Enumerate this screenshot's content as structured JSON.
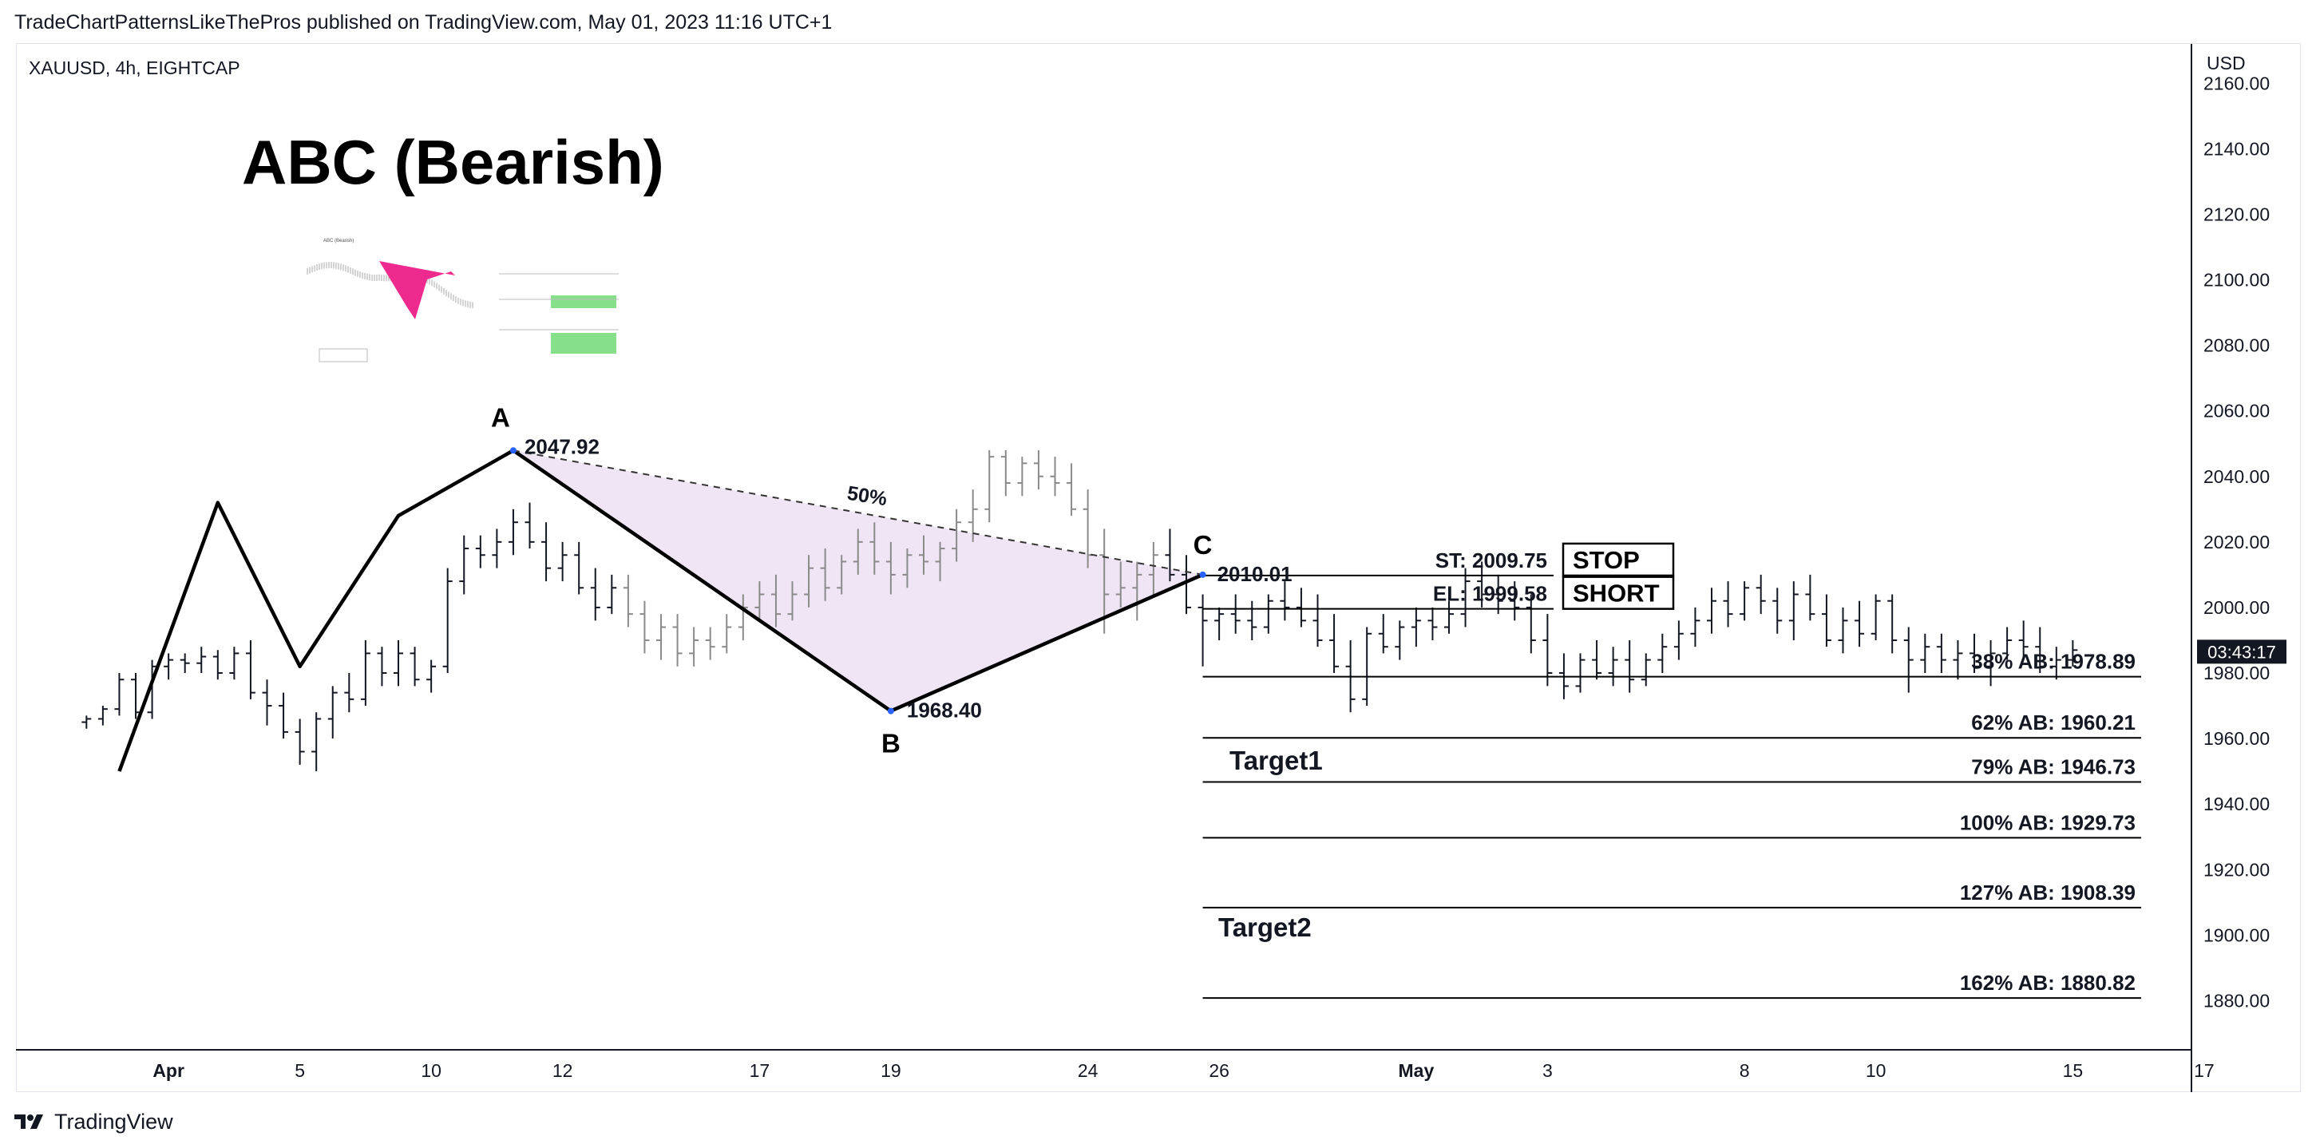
{
  "header": {
    "published_line": "TradeChartPatternsLikeThePros published on TradingView.com, May 01, 2023 11:16 UTC+1",
    "symbol_line": "XAUUSD, 4h, EIGHTCAP"
  },
  "footer": {
    "brand": "TradingView",
    "logo_icon": "tradingview-logo-icon"
  },
  "chart_data": {
    "type": "candlestick",
    "title": "ABC (Bearish)",
    "currency": "USD",
    "ylim": [
      1865,
      2172
    ],
    "y_ticks": [
      {
        "value": 2160,
        "label": "2160.00"
      },
      {
        "value": 2140,
        "label": "2140.00"
      },
      {
        "value": 2120,
        "label": "2120.00"
      },
      {
        "value": 2100,
        "label": "2100.00"
      },
      {
        "value": 2080,
        "label": "2080.00"
      },
      {
        "value": 2060,
        "label": "2060.00"
      },
      {
        "value": 2040,
        "label": "2040.00"
      },
      {
        "value": 2020,
        "label": "2020.00"
      },
      {
        "value": 2000,
        "label": "2000.00"
      },
      {
        "value": 1980,
        "label": "1980.00"
      },
      {
        "value": 1960,
        "label": "1960.00"
      },
      {
        "value": 1940,
        "label": "1940.00"
      },
      {
        "value": 1920,
        "label": "1920.00"
      },
      {
        "value": 1900,
        "label": "1900.00"
      },
      {
        "value": 1880,
        "label": "1880.00"
      }
    ],
    "x_axis_unit": "days since Mar 31, 2023",
    "xlim": [
      -1.5,
      48
    ],
    "x_ticks": [
      {
        "day": 1,
        "label": "Apr",
        "bold": true
      },
      {
        "day": 5,
        "label": "5"
      },
      {
        "day": 9,
        "label": "10"
      },
      {
        "day": 13,
        "label": "12"
      },
      {
        "day": 19,
        "label": "17"
      },
      {
        "day": 23,
        "label": "19"
      },
      {
        "day": 29,
        "label": "24"
      },
      {
        "day": 33,
        "label": "26"
      },
      {
        "day": 39,
        "label": "May",
        "bold": true
      },
      {
        "day": 43,
        "label": "3"
      },
      {
        "day": 49,
        "label": "8"
      },
      {
        "day": 53,
        "label": "10"
      },
      {
        "day": 59,
        "label": "15"
      },
      {
        "day": 63,
        "label": "17"
      }
    ],
    "price_badge": {
      "price": 1986.5,
      "label": "03:43:17"
    },
    "candles": [
      [
        -1.5,
        1965,
        1967,
        1963,
        1966
      ],
      [
        -1.0,
        1966,
        1970,
        1964,
        1969
      ],
      [
        -0.5,
        1969,
        1980,
        1967,
        1978
      ],
      [
        0.0,
        1978,
        1980,
        1966,
        1968
      ],
      [
        0.5,
        1968,
        1984,
        1966,
        1982
      ],
      [
        1.0,
        1982,
        1986,
        1978,
        1984
      ],
      [
        1.5,
        1984,
        1986,
        1980,
        1983
      ],
      [
        2.0,
        1983,
        1988,
        1980,
        1985
      ],
      [
        2.5,
        1985,
        1987,
        1978,
        1980
      ],
      [
        3.0,
        1980,
        1988,
        1978,
        1986
      ],
      [
        3.5,
        1986,
        1990,
        1972,
        1974
      ],
      [
        4.0,
        1974,
        1978,
        1964,
        1970
      ],
      [
        4.5,
        1970,
        1974,
        1960,
        1962
      ],
      [
        5.0,
        1962,
        1966,
        1952,
        1956
      ],
      [
        5.5,
        1956,
        1968,
        1950,
        1966
      ],
      [
        6.0,
        1966,
        1976,
        1960,
        1974
      ],
      [
        6.5,
        1974,
        1980,
        1968,
        1972
      ],
      [
        7.0,
        1972,
        1990,
        1970,
        1986
      ],
      [
        7.5,
        1986,
        1988,
        1976,
        1980
      ],
      [
        8.0,
        1980,
        1990,
        1976,
        1986
      ],
      [
        8.5,
        1986,
        1988,
        1976,
        1978
      ],
      [
        9.0,
        1978,
        1984,
        1974,
        1982
      ],
      [
        9.5,
        1982,
        2012,
        1980,
        2008
      ],
      [
        10.0,
        2008,
        2022,
        2004,
        2018
      ],
      [
        10.5,
        2018,
        2022,
        2012,
        2016
      ],
      [
        11.0,
        2016,
        2024,
        2012,
        2020
      ],
      [
        11.5,
        2020,
        2030,
        2016,
        2026
      ],
      [
        12.0,
        2026,
        2032,
        2018,
        2020
      ],
      [
        12.5,
        2020,
        2026,
        2008,
        2012
      ],
      [
        13.0,
        2012,
        2020,
        2008,
        2016
      ],
      [
        13.5,
        2016,
        2020,
        2004,
        2006
      ],
      [
        14.0,
        2006,
        2012,
        1996,
        2000
      ],
      [
        14.5,
        2000,
        2010,
        1998,
        2006
      ],
      [
        15.0,
        2006,
        2010,
        1994,
        1998
      ],
      [
        15.5,
        1998,
        2002,
        1986,
        1990
      ],
      [
        16.0,
        1990,
        1998,
        1984,
        1994
      ],
      [
        16.5,
        1994,
        1998,
        1982,
        1986
      ],
      [
        17.0,
        1986,
        1994,
        1982,
        1990
      ],
      [
        17.5,
        1990,
        1994,
        1984,
        1988
      ],
      [
        18.0,
        1988,
        1998,
        1986,
        1994
      ],
      [
        18.5,
        1994,
        2004,
        1990,
        2000
      ],
      [
        19.0,
        2000,
        2008,
        1996,
        2004
      ],
      [
        19.5,
        2004,
        2010,
        1994,
        1998
      ],
      [
        20.0,
        1998,
        2008,
        1996,
        2004
      ],
      [
        20.5,
        2004,
        2016,
        2000,
        2012
      ],
      [
        21.0,
        2012,
        2018,
        2002,
        2006
      ],
      [
        21.5,
        2006,
        2016,
        2004,
        2014
      ],
      [
        22.0,
        2014,
        2024,
        2010,
        2020
      ],
      [
        22.5,
        2020,
        2026,
        2010,
        2014
      ],
      [
        23.0,
        2014,
        2020,
        2004,
        2010
      ],
      [
        23.5,
        2010,
        2018,
        2006,
        2016
      ],
      [
        24.0,
        2016,
        2022,
        2010,
        2014
      ],
      [
        24.5,
        2014,
        2020,
        2008,
        2018
      ],
      [
        25.0,
        2018,
        2030,
        2014,
        2026
      ],
      [
        25.5,
        2026,
        2036,
        2020,
        2030
      ],
      [
        26.0,
        2030,
        2048,
        2026,
        2046
      ],
      [
        26.5,
        2046,
        2048,
        2034,
        2038
      ],
      [
        27.0,
        2038,
        2046,
        2034,
        2044
      ],
      [
        27.5,
        2044,
        2048,
        2036,
        2040
      ],
      [
        28.0,
        2040,
        2046,
        2034,
        2038
      ],
      [
        28.5,
        2038,
        2044,
        2028,
        2030
      ],
      [
        29.0,
        2030,
        2036,
        2012,
        2016
      ],
      [
        29.5,
        2016,
        2024,
        1992,
        2004
      ],
      [
        30.0,
        2004,
        2014,
        2000,
        2006
      ],
      [
        30.5,
        2006,
        2014,
        1996,
        2010
      ],
      [
        31.0,
        2010,
        2020,
        2004,
        2016
      ],
      [
        31.5,
        2016,
        2024,
        2008,
        2010
      ],
      [
        32.0,
        2010,
        2016,
        1998,
        2000
      ],
      [
        32.5,
        2000,
        2004,
        1982,
        1996
      ],
      [
        33.0,
        1996,
        2000,
        1990,
        1998
      ],
      [
        33.5,
        1998,
        2004,
        1992,
        1996
      ],
      [
        34.0,
        1996,
        2002,
        1990,
        1994
      ],
      [
        34.5,
        1994,
        2004,
        1992,
        2002
      ],
      [
        35.0,
        2002,
        2008,
        1996,
        2000
      ],
      [
        35.5,
        2000,
        2006,
        1994,
        1996
      ],
      [
        36.0,
        1996,
        2004,
        1988,
        1990
      ],
      [
        36.5,
        1990,
        1998,
        1980,
        1982
      ],
      [
        37.0,
        1982,
        1990,
        1968,
        1972
      ],
      [
        37.5,
        1972,
        1994,
        1970,
        1992
      ],
      [
        38.0,
        1992,
        1998,
        1986,
        1988
      ],
      [
        38.5,
        1988,
        1996,
        1984,
        1994
      ],
      [
        39.0,
        1994,
        2000,
        1988,
        1996
      ],
      [
        39.5,
        1996,
        2000,
        1990,
        1994
      ],
      [
        40.0,
        1994,
        2002,
        1992,
        1998
      ],
      [
        40.5,
        1998,
        2012,
        1994,
        2008
      ],
      [
        41.0,
        2008,
        2014,
        2000,
        2004
      ],
      [
        41.5,
        2004,
        2010,
        1998,
        2002
      ],
      [
        42.0,
        2002,
        2008,
        1996,
        2000
      ],
      [
        42.5,
        2000,
        2004,
        1986,
        1990
      ],
      [
        43.0,
        1990,
        1998,
        1976,
        1980
      ],
      [
        43.5,
        1980,
        1986,
        1972,
        1976
      ],
      [
        44.0,
        1976,
        1986,
        1974,
        1984
      ],
      [
        44.5,
        1984,
        1990,
        1978,
        1980
      ],
      [
        45.0,
        1980,
        1988,
        1976,
        1984
      ],
      [
        45.5,
        1984,
        1990,
        1974,
        1978
      ],
      [
        46.0,
        1978,
        1986,
        1976,
        1984
      ],
      [
        46.5,
        1984,
        1992,
        1980,
        1988
      ],
      [
        47.0,
        1988,
        1996,
        1984,
        1992
      ],
      [
        47.5,
        1992,
        2000,
        1988,
        1996
      ],
      [
        48.0,
        1996,
        2006,
        1992,
        2002
      ],
      [
        48.5,
        2002,
        2008,
        1994,
        1998
      ],
      [
        49.0,
        1998,
        2008,
        1996,
        2006
      ],
      [
        49.5,
        2006,
        2010,
        1998,
        2002
      ],
      [
        50.0,
        2002,
        2006,
        1992,
        1996
      ],
      [
        50.5,
        1996,
        2008,
        1990,
        2004
      ],
      [
        51.0,
        2004,
        2010,
        1996,
        1998
      ],
      [
        51.5,
        1998,
        2004,
        1988,
        1990
      ],
      [
        52.0,
        1990,
        2000,
        1986,
        1996
      ],
      [
        52.5,
        1996,
        2002,
        1988,
        1992
      ],
      [
        53.0,
        1992,
        2004,
        1990,
        2002
      ],
      [
        53.5,
        2002,
        2004,
        1986,
        1990
      ],
      [
        54.0,
        1990,
        1994,
        1974,
        1984
      ],
      [
        54.5,
        1984,
        1992,
        1980,
        1988
      ],
      [
        55.0,
        1988,
        1992,
        1980,
        1984
      ],
      [
        55.5,
        1984,
        1990,
        1978,
        1986
      ],
      [
        56.0,
        1986,
        1992,
        1980,
        1982
      ],
      [
        56.5,
        1982,
        1990,
        1976,
        1986
      ],
      [
        57.0,
        1986,
        1994,
        1984,
        1990
      ],
      [
        57.5,
        1990,
        1996,
        1984,
        1988
      ],
      [
        58.0,
        1988,
        1994,
        1980,
        1982
      ],
      [
        58.5,
        1982,
        1988,
        1978,
        1984
      ],
      [
        59.0,
        1984,
        1990,
        1982,
        1987
      ]
    ],
    "pattern": {
      "points": [
        {
          "label": "A",
          "day": 11.5,
          "price": 2047.92,
          "price_label": "2047.92"
        },
        {
          "label": "B",
          "day": 23.0,
          "price": 1968.4,
          "price_label": "1968.40"
        },
        {
          "label": "C",
          "day": 32.5,
          "price": 2010.01,
          "price_label": "2010.01"
        }
      ],
      "retracement_label": "50%",
      "zigzag": [
        [
          -0.5,
          1950
        ],
        [
          2.5,
          2032
        ],
        [
          5.0,
          1982
        ],
        [
          8.0,
          2028
        ],
        [
          11.5,
          2047.92
        ],
        [
          23.0,
          1968.4
        ],
        [
          32.5,
          2010.01
        ]
      ]
    },
    "levels": [
      {
        "name": "stop",
        "price": 2009.75,
        "label": "ST: 2009.75",
        "x0": 32.5,
        "x1": 46
      },
      {
        "name": "entry",
        "price": 1999.58,
        "label": "EL: 1999.58",
        "x0": 32.5,
        "x1": 46
      },
      {
        "name": "fib-38",
        "price": 1978.89,
        "label": "38% AB: 1978.89",
        "x0": 32.5,
        "x1": 70
      },
      {
        "name": "fib-62",
        "price": 1960.21,
        "label": "62% AB: 1960.21",
        "x0": 32.5,
        "x1": 70
      },
      {
        "name": "fib-79",
        "price": 1946.73,
        "label": "79% AB: 1946.73",
        "x0": 32.5,
        "x1": 70
      },
      {
        "name": "fib-100",
        "price": 1929.73,
        "label": "100% AB: 1929.73",
        "x0": 32.5,
        "x1": 70
      },
      {
        "name": "fib-127",
        "price": 1908.39,
        "label": "127% AB: 1908.39",
        "x0": 32.5,
        "x1": 70
      },
      {
        "name": "fib-162",
        "price": 1880.82,
        "label": "162% AB: 1880.82",
        "x0": 32.5,
        "x1": 70
      }
    ],
    "buttons": {
      "stop": "STOP",
      "short": "SHORT"
    },
    "targets": [
      {
        "label": "Target1",
        "price": 1953
      },
      {
        "label": "Target2",
        "price": 1902
      }
    ],
    "colors": {
      "pink": "#ee2a8e",
      "green": "#86e08a",
      "fill": "#efe5f5",
      "badge": "#131722"
    }
  }
}
